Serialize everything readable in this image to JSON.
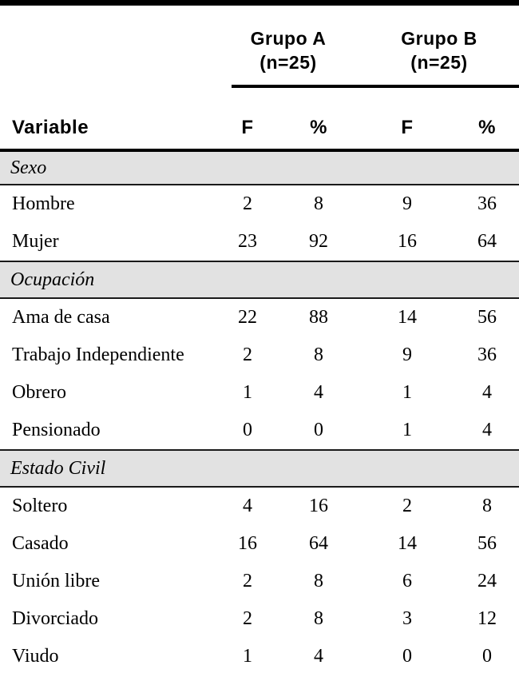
{
  "table": {
    "groups": [
      {
        "name": "Grupo A",
        "n": "(n=25)"
      },
      {
        "name": "Grupo B",
        "n": "(n=25)"
      }
    ],
    "variable_header": "Variable",
    "sub_headers": [
      "F",
      "%",
      "F",
      "%"
    ],
    "sections": [
      {
        "title": "Sexo",
        "rows": [
          {
            "label": "Hombre",
            "values": [
              "2",
              "8",
              "9",
              "36"
            ]
          },
          {
            "label": "Mujer",
            "values": [
              "23",
              "92",
              "16",
              "64"
            ]
          }
        ]
      },
      {
        "title": "Ocupación",
        "rows": [
          {
            "label": "Ama de casa",
            "values": [
              "22",
              "88",
              "14",
              "56"
            ]
          },
          {
            "label": "Trabajo Independiente",
            "values": [
              "2",
              "8",
              "9",
              "36"
            ]
          },
          {
            "label": "Obrero",
            "values": [
              "1",
              "4",
              "1",
              "4"
            ]
          },
          {
            "label": "Pensionado",
            "values": [
              "0",
              "0",
              "1",
              "4"
            ]
          }
        ]
      },
      {
        "title": "Estado Civil",
        "rows": [
          {
            "label": "Soltero",
            "values": [
              "4",
              "16",
              "2",
              "8"
            ]
          },
          {
            "label": "Casado",
            "values": [
              "16",
              "64",
              "14",
              "56"
            ]
          },
          {
            "label": "Unión libre",
            "values": [
              "2",
              "8",
              "6",
              "24"
            ]
          },
          {
            "label": "Divorciado",
            "values": [
              "2",
              "8",
              "3",
              "12"
            ]
          },
          {
            "label": "Viudo",
            "values": [
              "1",
              "4",
              "0",
              "0"
            ]
          }
        ]
      }
    ],
    "colors": {
      "band_bg": "#e2e2e2",
      "rule": "#000000"
    }
  }
}
